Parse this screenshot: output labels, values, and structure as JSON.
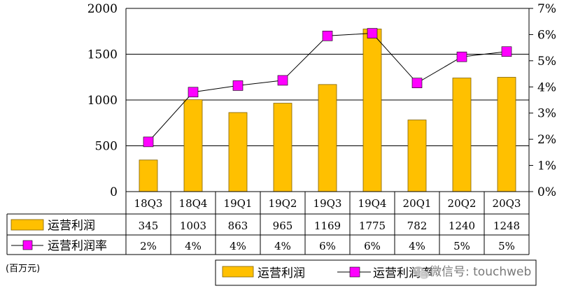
{
  "chart_data": {
    "type": "bar",
    "categories": [
      "18Q3",
      "18Q4",
      "19Q1",
      "19Q2",
      "19Q3",
      "19Q4",
      "20Q1",
      "20Q2",
      "20Q3"
    ],
    "series": [
      {
        "name": "运营利润",
        "type": "bar",
        "axis": "left",
        "values": [
          345,
          1003,
          863,
          965,
          1169,
          1775,
          782,
          1240,
          1248
        ]
      },
      {
        "name": "运营利润率",
        "type": "line",
        "axis": "right",
        "values": [
          1.9,
          3.8,
          4.05,
          4.25,
          5.95,
          6.05,
          4.15,
          5.15,
          5.35
        ]
      }
    ],
    "y_left": {
      "ylim": [
        0,
        2000
      ],
      "ticks": [
        "0",
        "500",
        "1000",
        "1500",
        "2000"
      ],
      "label": "(百万元)"
    },
    "y_right": {
      "ylim": [
        0,
        7
      ],
      "ticks": [
        "0%",
        "1%",
        "2%",
        "3%",
        "4%",
        "5%",
        "6%",
        "7%"
      ]
    },
    "grid": true,
    "legend_position": "bottom-right",
    "colors": {
      "bar": "#FFC000",
      "bar_edge": "#7F6000",
      "marker": "#FF00FF",
      "line": "#000000"
    }
  },
  "table": {
    "rows": [
      {
        "label": "运营利润",
        "values": [
          "345",
          "1003",
          "863",
          "965",
          "1169",
          "1775",
          "782",
          "1240",
          "1248"
        ]
      },
      {
        "label": "运营利润率",
        "values": [
          "2%",
          "4%",
          "4%",
          "4%",
          "6%",
          "6%",
          "4%",
          "5%",
          "5%"
        ]
      }
    ]
  },
  "legend": [
    "运营利润",
    "运营利润率"
  ],
  "unit_label": "(百万元)",
  "watermark": "微信号: touchweb",
  "watermark_icon": "wechat-logo-icon"
}
